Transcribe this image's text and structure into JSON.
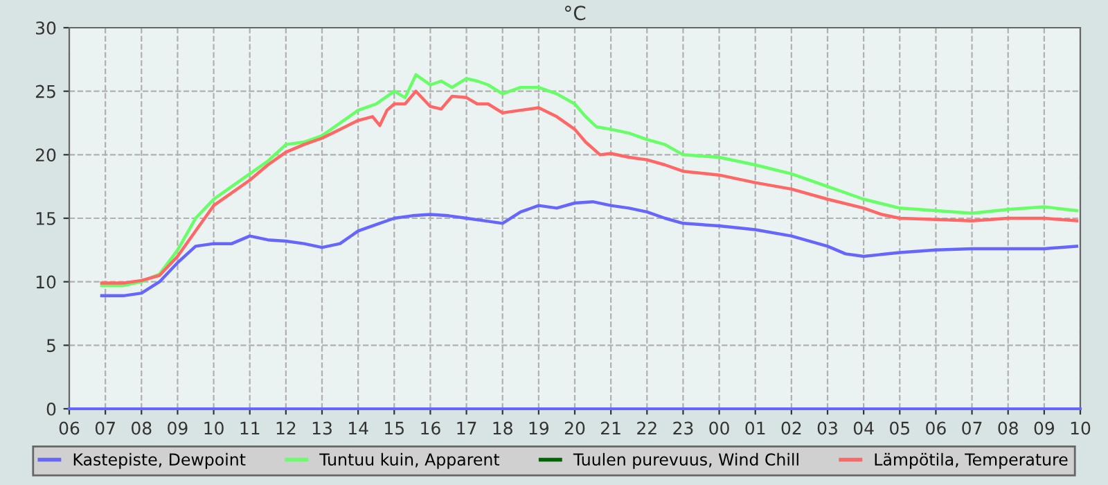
{
  "chart_data": {
    "type": "line",
    "title": "°C",
    "xlim": [
      6,
      34
    ],
    "ylim": [
      0,
      30
    ],
    "yticks": [
      0,
      5,
      10,
      15,
      20,
      25,
      30
    ],
    "xticks": [
      {
        "value": 6,
        "label": "06"
      },
      {
        "value": 7,
        "label": "07"
      },
      {
        "value": 8,
        "label": "08"
      },
      {
        "value": 9,
        "label": "09"
      },
      {
        "value": 10,
        "label": "10"
      },
      {
        "value": 11,
        "label": "11"
      },
      {
        "value": 12,
        "label": "12"
      },
      {
        "value": 13,
        "label": "13"
      },
      {
        "value": 14,
        "label": "14"
      },
      {
        "value": 15,
        "label": "15"
      },
      {
        "value": 16,
        "label": "16"
      },
      {
        "value": 17,
        "label": "17"
      },
      {
        "value": 18,
        "label": "18"
      },
      {
        "value": 19,
        "label": "19"
      },
      {
        "value": 20,
        "label": "20"
      },
      {
        "value": 21,
        "label": "21"
      },
      {
        "value": 22,
        "label": "22"
      },
      {
        "value": 23,
        "label": "23"
      },
      {
        "value": 24,
        "label": "00"
      },
      {
        "value": 25,
        "label": "01"
      },
      {
        "value": 26,
        "label": "02"
      },
      {
        "value": 27,
        "label": "03"
      },
      {
        "value": 28,
        "label": "04"
      },
      {
        "value": 29,
        "label": "05"
      },
      {
        "value": 30,
        "label": "06"
      },
      {
        "value": 31,
        "label": "07"
      },
      {
        "value": 32,
        "label": "08"
      },
      {
        "value": 33,
        "label": "09"
      },
      {
        "value": 34,
        "label": "10"
      }
    ],
    "grid": true,
    "legend": "bottom",
    "marker": "none",
    "line_style": "solid",
    "series": [
      {
        "name": "Kastepiste, Dewpoint",
        "color": "#6666ff",
        "x": [
          6.9,
          7.5,
          8.0,
          8.5,
          9.0,
          9.5,
          10.0,
          10.5,
          11.0,
          11.5,
          12.0,
          12.5,
          13.0,
          13.5,
          14.0,
          14.5,
          15.0,
          15.5,
          16.0,
          16.5,
          17.0,
          17.5,
          18.0,
          18.5,
          19.0,
          19.5,
          20.0,
          20.5,
          21.0,
          21.5,
          22.0,
          22.5,
          23.0,
          24.0,
          25.0,
          26.0,
          27.0,
          27.5,
          28.0,
          29.0,
          30.0,
          31.0,
          32.0,
          33.0,
          33.9
        ],
        "values": [
          8.9,
          8.9,
          9.1,
          10.0,
          11.5,
          12.8,
          13.0,
          13.0,
          13.6,
          13.3,
          13.2,
          13.0,
          12.7,
          13.0,
          14.0,
          14.5,
          15.0,
          15.2,
          15.3,
          15.2,
          15.0,
          14.8,
          14.6,
          15.5,
          16.0,
          15.8,
          16.2,
          16.3,
          16.0,
          15.8,
          15.5,
          15.0,
          14.6,
          14.4,
          14.1,
          13.6,
          12.8,
          12.2,
          12.0,
          12.3,
          12.5,
          12.6,
          12.6,
          12.6,
          12.8
        ]
      },
      {
        "name": "Tuntuu kuin, Apparent",
        "color": "#66ff66",
        "x": [
          6.9,
          7.5,
          8.0,
          8.5,
          9.0,
          9.5,
          10.0,
          10.5,
          11.0,
          11.5,
          12.0,
          12.5,
          13.0,
          13.5,
          14.0,
          14.5,
          15.0,
          15.3,
          15.6,
          16.0,
          16.3,
          16.6,
          17.0,
          17.3,
          17.6,
          18.0,
          18.5,
          19.0,
          19.5,
          20.0,
          20.3,
          20.6,
          21.0,
          21.5,
          22.0,
          22.5,
          23.0,
          24.0,
          25.0,
          26.0,
          27.0,
          28.0,
          29.0,
          30.0,
          31.0,
          32.0,
          33.0,
          33.9
        ],
        "values": [
          9.7,
          9.7,
          10.0,
          10.6,
          12.5,
          15.0,
          16.5,
          17.5,
          18.5,
          19.5,
          20.8,
          21.0,
          21.5,
          22.5,
          23.5,
          24.0,
          25.0,
          24.5,
          26.3,
          25.5,
          25.8,
          25.3,
          26.0,
          25.8,
          25.5,
          24.8,
          25.3,
          25.3,
          24.8,
          24.0,
          23.0,
          22.2,
          22.0,
          21.7,
          21.2,
          20.8,
          20.0,
          19.8,
          19.2,
          18.5,
          17.5,
          16.5,
          15.8,
          15.6,
          15.4,
          15.7,
          15.9,
          15.6
        ]
      },
      {
        "name": "Tuulen purevuus, Wind Chill",
        "color": "#006600"
      },
      {
        "name": "Lämpötila, Temperature",
        "color": "#ff6666",
        "x": [
          6.9,
          7.5,
          8.0,
          8.5,
          9.0,
          9.5,
          10.0,
          10.5,
          11.0,
          11.5,
          12.0,
          12.5,
          13.0,
          13.5,
          14.0,
          14.4,
          14.6,
          14.8,
          15.0,
          15.3,
          15.6,
          16.0,
          16.3,
          16.6,
          17.0,
          17.3,
          17.6,
          18.0,
          18.5,
          19.0,
          19.5,
          20.0,
          20.3,
          20.7,
          21.0,
          21.5,
          22.0,
          22.5,
          23.0,
          24.0,
          25.0,
          26.0,
          27.0,
          28.0,
          28.5,
          29.0,
          30.0,
          31.0,
          32.0,
          33.0,
          33.9
        ],
        "values": [
          9.9,
          9.9,
          10.1,
          10.5,
          12.0,
          14.0,
          16.0,
          17.0,
          18.0,
          19.2,
          20.2,
          20.8,
          21.3,
          22.0,
          22.7,
          23.0,
          22.3,
          23.5,
          24.0,
          24.0,
          25.0,
          23.8,
          23.6,
          24.6,
          24.5,
          24.0,
          24.0,
          23.3,
          23.5,
          23.7,
          23.0,
          22.0,
          21.0,
          20.0,
          20.1,
          19.8,
          19.6,
          19.2,
          18.7,
          18.4,
          17.8,
          17.3,
          16.5,
          15.8,
          15.3,
          15.0,
          14.9,
          14.8,
          15.0,
          15.0,
          14.8
        ]
      }
    ]
  }
}
